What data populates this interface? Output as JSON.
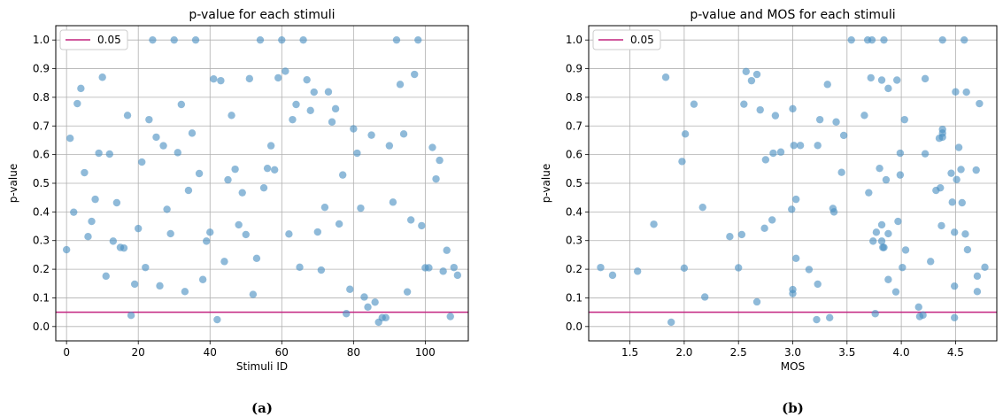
{
  "chart_data": [
    {
      "type": "scatter",
      "title": "p-value for each stimuli",
      "xlabel": "Stimuli ID",
      "ylabel": "p-value",
      "caption": "(a)",
      "xlim": [
        -3,
        112
      ],
      "ylim": [
        -0.05,
        1.05
      ],
      "xticks": [
        0,
        20,
        40,
        60,
        80,
        100
      ],
      "yticks": [
        0.0,
        0.1,
        0.2,
        0.3,
        0.4,
        0.5,
        0.6,
        0.7,
        0.8,
        0.9,
        1.0
      ],
      "grid": true,
      "legend": {
        "position": "top-left",
        "entries": [
          {
            "label": "0.05",
            "color": "#c2237f"
          }
        ]
      },
      "hline": {
        "y": 0.05,
        "color": "#c2237f"
      },
      "marker_color": "#4a8fc2",
      "points": [
        [
          0,
          0.268
        ],
        [
          1,
          0.657
        ],
        [
          2,
          0.399
        ],
        [
          3,
          0.778
        ],
        [
          4,
          0.831
        ],
        [
          5,
          0.537
        ],
        [
          6,
          0.314
        ],
        [
          7,
          0.367
        ],
        [
          8,
          0.444
        ],
        [
          9,
          0.605
        ],
        [
          10,
          0.87
        ],
        [
          11,
          0.176
        ],
        [
          12,
          0.602
        ],
        [
          13,
          0.298
        ],
        [
          14,
          0.432
        ],
        [
          15,
          0.276
        ],
        [
          16,
          0.274
        ],
        [
          17,
          0.737
        ],
        [
          18,
          0.039
        ],
        [
          19,
          0.148
        ],
        [
          20,
          0.342
        ],
        [
          21,
          0.574
        ],
        [
          22,
          0.206
        ],
        [
          23,
          0.722
        ],
        [
          24,
          1.0
        ],
        [
          25,
          0.661
        ],
        [
          26,
          0.142
        ],
        [
          27,
          0.631
        ],
        [
          28,
          0.409
        ],
        [
          29,
          0.324
        ],
        [
          30,
          1.0
        ],
        [
          31,
          0.607
        ],
        [
          32,
          0.775
        ],
        [
          33,
          0.122
        ],
        [
          34,
          0.475
        ],
        [
          35,
          0.675
        ],
        [
          36,
          1.0
        ],
        [
          37,
          0.534
        ],
        [
          38,
          0.164
        ],
        [
          39,
          0.298
        ],
        [
          40,
          0.329
        ],
        [
          41,
          0.864
        ],
        [
          42,
          0.024
        ],
        [
          43,
          0.858
        ],
        [
          44,
          0.227
        ],
        [
          45,
          0.512
        ],
        [
          46,
          0.737
        ],
        [
          47,
          0.549
        ],
        [
          48,
          0.355
        ],
        [
          49,
          0.467
        ],
        [
          50,
          0.321
        ],
        [
          51,
          0.865
        ],
        [
          52,
          0.112
        ],
        [
          53,
          0.238
        ],
        [
          54,
          1.0
        ],
        [
          55,
          0.484
        ],
        [
          56,
          0.552
        ],
        [
          57,
          0.631
        ],
        [
          58,
          0.547
        ],
        [
          59,
          0.868
        ],
        [
          60,
          1.0
        ],
        [
          61,
          0.891
        ],
        [
          62,
          0.323
        ],
        [
          63,
          0.722
        ],
        [
          64,
          0.775
        ],
        [
          65,
          0.207
        ],
        [
          66,
          1.0
        ],
        [
          67,
          0.861
        ],
        [
          68,
          0.754
        ],
        [
          69,
          0.818
        ],
        [
          70,
          0.33
        ],
        [
          71,
          0.197
        ],
        [
          72,
          0.416
        ],
        [
          73,
          0.819
        ],
        [
          74,
          0.714
        ],
        [
          75,
          0.76
        ],
        [
          76,
          0.358
        ],
        [
          77,
          0.529
        ],
        [
          78,
          0.045
        ],
        [
          79,
          0.13
        ],
        [
          80,
          0.69
        ],
        [
          81,
          0.605
        ],
        [
          82,
          0.413
        ],
        [
          83,
          0.103
        ],
        [
          84,
          0.068
        ],
        [
          85,
          0.668
        ],
        [
          86,
          0.085
        ],
        [
          87,
          0.015
        ],
        [
          88,
          0.031
        ],
        [
          89,
          0.031
        ],
        [
          90,
          0.631
        ],
        [
          91,
          0.434
        ],
        [
          92,
          1.0
        ],
        [
          93,
          0.845
        ],
        [
          94,
          0.672
        ],
        [
          95,
          0.121
        ],
        [
          96,
          0.372
        ],
        [
          97,
          0.88
        ],
        [
          98,
          1.0
        ],
        [
          99,
          0.352
        ],
        [
          100,
          0.205
        ],
        [
          101,
          0.205
        ],
        [
          102,
          0.625
        ],
        [
          103,
          0.515
        ],
        [
          104,
          0.58
        ],
        [
          105,
          0.193
        ],
        [
          106,
          0.266
        ],
        [
          107,
          0.035
        ],
        [
          108,
          0.206
        ],
        [
          109,
          0.179
        ]
      ]
    },
    {
      "type": "scatter",
      "title": "p-value and MOS for each stimuli",
      "xlabel": "MOS",
      "ylabel": "p-value",
      "caption": "(b)",
      "xlim": [
        1.12,
        4.88
      ],
      "ylim": [
        -0.05,
        1.05
      ],
      "xticks": [
        1.5,
        2.0,
        2.5,
        3.0,
        3.5,
        4.0,
        4.5
      ],
      "yticks": [
        0.0,
        0.1,
        0.2,
        0.3,
        0.4,
        0.5,
        0.6,
        0.7,
        0.8,
        0.9,
        1.0
      ],
      "grid": true,
      "legend": {
        "position": "top-left",
        "entries": [
          {
            "label": "0.05",
            "color": "#c2237f"
          }
        ]
      },
      "hline": {
        "y": 0.05,
        "color": "#c2237f"
      },
      "marker_color": "#4a8fc2",
      "points": [
        [
          1.23,
          0.206
        ],
        [
          1.34,
          0.179
        ],
        [
          1.57,
          0.193
        ],
        [
          1.72,
          0.357
        ],
        [
          1.83,
          0.87
        ],
        [
          1.88,
          0.015
        ],
        [
          1.98,
          0.576
        ],
        [
          2.0,
          0.204
        ],
        [
          2.01,
          0.672
        ],
        [
          2.09,
          0.776
        ],
        [
          2.17,
          0.416
        ],
        [
          2.19,
          0.103
        ],
        [
          2.42,
          0.314
        ],
        [
          2.5,
          0.205
        ],
        [
          2.53,
          0.321
        ],
        [
          2.55,
          0.776
        ],
        [
          2.57,
          0.89
        ],
        [
          2.62,
          0.858
        ],
        [
          2.67,
          0.88
        ],
        [
          2.67,
          0.086
        ],
        [
          2.7,
          0.756
        ],
        [
          2.74,
          0.343
        ],
        [
          2.75,
          0.582
        ],
        [
          2.81,
          0.372
        ],
        [
          2.82,
          0.605
        ],
        [
          2.84,
          0.736
        ],
        [
          2.89,
          0.609
        ],
        [
          2.99,
          0.409
        ],
        [
          3.0,
          0.76
        ],
        [
          3.0,
          0.115
        ],
        [
          3.0,
          0.129
        ],
        [
          3.01,
          0.632
        ],
        [
          3.03,
          0.444
        ],
        [
          3.03,
          0.238
        ],
        [
          3.07,
          0.632
        ],
        [
          3.15,
          0.199
        ],
        [
          3.22,
          0.024
        ],
        [
          3.23,
          0.632
        ],
        [
          3.23,
          0.148
        ],
        [
          3.25,
          0.722
        ],
        [
          3.32,
          0.845
        ],
        [
          3.34,
          0.031
        ],
        [
          3.37,
          0.412
        ],
        [
          3.38,
          0.4
        ],
        [
          3.4,
          0.714
        ],
        [
          3.45,
          0.538
        ],
        [
          3.47,
          0.667
        ],
        [
          3.54,
          1.0
        ],
        [
          3.66,
          0.737
        ],
        [
          3.69,
          1.0
        ],
        [
          3.7,
          0.467
        ],
        [
          3.72,
          0.868
        ],
        [
          3.73,
          1.0
        ],
        [
          3.74,
          0.298
        ],
        [
          3.76,
          0.045
        ],
        [
          3.77,
          0.329
        ],
        [
          3.8,
          0.552
        ],
        [
          3.82,
          0.355
        ],
        [
          3.82,
          0.86
        ],
        [
          3.82,
          0.298
        ],
        [
          3.83,
          0.276
        ],
        [
          3.84,
          1.0
        ],
        [
          3.84,
          0.276
        ],
        [
          3.86,
          0.512
        ],
        [
          3.88,
          0.831
        ],
        [
          3.88,
          0.164
        ],
        [
          3.88,
          0.324
        ],
        [
          3.95,
          0.121
        ],
        [
          3.96,
          0.86
        ],
        [
          3.97,
          0.367
        ],
        [
          3.99,
          0.605
        ],
        [
          3.99,
          0.529
        ],
        [
          4.01,
          0.206
        ],
        [
          4.03,
          0.722
        ],
        [
          4.04,
          0.267
        ],
        [
          4.16,
          0.068
        ],
        [
          4.17,
          0.035
        ],
        [
          4.2,
          0.04
        ],
        [
          4.22,
          0.603
        ],
        [
          4.22,
          0.865
        ],
        [
          4.27,
          0.227
        ],
        [
          4.32,
          0.475
        ],
        [
          4.35,
          0.657
        ],
        [
          4.36,
          0.484
        ],
        [
          4.37,
          0.352
        ],
        [
          4.38,
          1.0
        ],
        [
          4.38,
          0.688
        ],
        [
          4.38,
          0.675
        ],
        [
          4.38,
          0.661
        ],
        [
          4.46,
          0.535
        ],
        [
          4.47,
          0.434
        ],
        [
          4.49,
          0.329
        ],
        [
          4.49,
          0.141
        ],
        [
          4.49,
          0.031
        ],
        [
          4.5,
          0.819
        ],
        [
          4.51,
          0.513
        ],
        [
          4.53,
          0.625
        ],
        [
          4.55,
          0.548
        ],
        [
          4.56,
          0.432
        ],
        [
          4.58,
          1.0
        ],
        [
          4.59,
          0.323
        ],
        [
          4.6,
          0.818
        ],
        [
          4.61,
          0.268
        ],
        [
          4.69,
          0.546
        ],
        [
          4.7,
          0.176
        ],
        [
          4.7,
          0.122
        ],
        [
          4.72,
          0.778
        ],
        [
          4.77,
          0.207
        ]
      ]
    }
  ]
}
